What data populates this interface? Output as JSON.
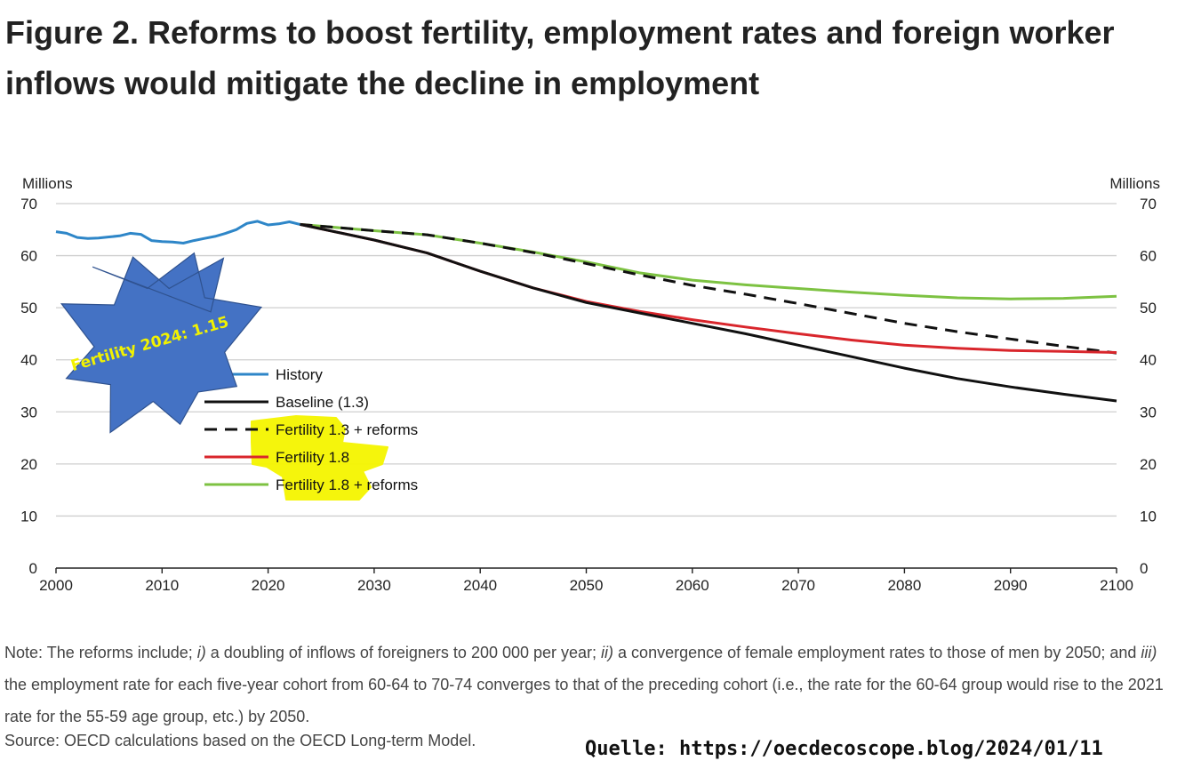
{
  "title": {
    "line1": "Figure 2. Reforms to boost fertility, employment rates and foreign worker",
    "line2": "inflows would mitigate the decline in employment"
  },
  "chart_data": {
    "type": "line",
    "ylabel_left": "Millions",
    "ylabel_right": "Millions",
    "xlim": [
      2000,
      2100
    ],
    "ylim": [
      0,
      70
    ],
    "x_ticks": [
      2000,
      2010,
      2020,
      2030,
      2040,
      2050,
      2060,
      2070,
      2080,
      2090,
      2100
    ],
    "y_ticks": [
      0,
      10,
      20,
      30,
      40,
      50,
      60,
      70
    ],
    "grid": "horizontal",
    "legend_position": "left",
    "series": [
      {
        "name": "History",
        "color": "#2e86c8",
        "dash": "solid",
        "points": [
          [
            2000,
            64.6
          ],
          [
            2001,
            64.3
          ],
          [
            2002,
            63.5
          ],
          [
            2003,
            63.3
          ],
          [
            2004,
            63.4
          ],
          [
            2005,
            63.6
          ],
          [
            2006,
            63.8
          ],
          [
            2007,
            64.3
          ],
          [
            2008,
            64.1
          ],
          [
            2009,
            62.9
          ],
          [
            2010,
            62.7
          ],
          [
            2011,
            62.6
          ],
          [
            2012,
            62.4
          ],
          [
            2013,
            62.9
          ],
          [
            2014,
            63.3
          ],
          [
            2015,
            63.7
          ],
          [
            2016,
            64.3
          ],
          [
            2017,
            65.0
          ],
          [
            2018,
            66.2
          ],
          [
            2019,
            66.6
          ],
          [
            2020,
            65.9
          ],
          [
            2021,
            66.1
          ],
          [
            2022,
            66.5
          ],
          [
            2023,
            66.0
          ]
        ]
      },
      {
        "name": "Baseline (1.3)",
        "color": "#111111",
        "dash": "solid",
        "points": [
          [
            2023,
            66.0
          ],
          [
            2030,
            63.0
          ],
          [
            2035,
            60.5
          ],
          [
            2040,
            57.0
          ],
          [
            2045,
            53.8
          ],
          [
            2050,
            51.0
          ],
          [
            2055,
            49.0
          ],
          [
            2060,
            47.0
          ],
          [
            2065,
            45.0
          ],
          [
            2070,
            42.8
          ],
          [
            2075,
            40.6
          ],
          [
            2080,
            38.4
          ],
          [
            2085,
            36.4
          ],
          [
            2090,
            34.8
          ],
          [
            2095,
            33.4
          ],
          [
            2100,
            32.1
          ]
        ]
      },
      {
        "name": "Fertility 1.3 + reforms",
        "color": "#111111",
        "dash": "dashed",
        "points": [
          [
            2023,
            66.0
          ],
          [
            2030,
            64.8
          ],
          [
            2035,
            64.0
          ],
          [
            2040,
            62.4
          ],
          [
            2045,
            60.6
          ],
          [
            2050,
            58.5
          ],
          [
            2055,
            56.3
          ],
          [
            2060,
            54.3
          ],
          [
            2065,
            52.6
          ],
          [
            2070,
            50.8
          ],
          [
            2075,
            48.9
          ],
          [
            2080,
            47.0
          ],
          [
            2085,
            45.4
          ],
          [
            2090,
            44.0
          ],
          [
            2095,
            42.6
          ],
          [
            2100,
            41.3
          ]
        ]
      },
      {
        "name": "Fertility 1.8",
        "color": "#d9262c",
        "dash": "solid",
        "points": [
          [
            2023,
            66.0
          ],
          [
            2030,
            63.0
          ],
          [
            2035,
            60.5
          ],
          [
            2040,
            57.0
          ],
          [
            2045,
            53.8
          ],
          [
            2050,
            51.2
          ],
          [
            2055,
            49.3
          ],
          [
            2060,
            47.7
          ],
          [
            2065,
            46.3
          ],
          [
            2070,
            45.0
          ],
          [
            2075,
            43.8
          ],
          [
            2080,
            42.8
          ],
          [
            2085,
            42.2
          ],
          [
            2090,
            41.8
          ],
          [
            2095,
            41.6
          ],
          [
            2100,
            41.4
          ]
        ]
      },
      {
        "name": "Fertility 1.8 + reforms",
        "color": "#7dc242",
        "dash": "solid",
        "points": [
          [
            2023,
            66.0
          ],
          [
            2030,
            64.8
          ],
          [
            2035,
            64.0
          ],
          [
            2040,
            62.4
          ],
          [
            2045,
            60.7
          ],
          [
            2050,
            58.8
          ],
          [
            2055,
            56.7
          ],
          [
            2060,
            55.3
          ],
          [
            2065,
            54.4
          ],
          [
            2070,
            53.7
          ],
          [
            2075,
            53.0
          ],
          [
            2080,
            52.4
          ],
          [
            2085,
            51.9
          ],
          [
            2090,
            51.7
          ],
          [
            2095,
            51.8
          ],
          [
            2100,
            52.2
          ]
        ]
      }
    ]
  },
  "legend": {
    "items": [
      {
        "label": "History",
        "color": "#2e86c8",
        "dash": "solid"
      },
      {
        "label": "Baseline (1.3)",
        "color": "#111111",
        "dash": "solid"
      },
      {
        "label": "Fertility 1.3 + reforms",
        "color": "#111111",
        "dash": "dashed"
      },
      {
        "label": "Fertility 1.8",
        "color": "#d9262c",
        "dash": "solid"
      },
      {
        "label": "Fertility 1.8 + reforms",
        "color": "#7dc242",
        "dash": "solid"
      }
    ]
  },
  "starburst": {
    "text": "Fertility 2024: 1.15",
    "fill": "#4472c4",
    "text_color": "#f2f200"
  },
  "highlight_color": "#f5f500",
  "note": {
    "prefix": "Note: The reforms include; ",
    "i": "i)",
    "part1": " a doubling of inflows of foreigners to 200 000 per year; ",
    "ii": "ii)",
    "part2": " a convergence of female employment rates to those of men by 2050; and ",
    "iii": "iii)",
    "part3": " the employment rate for each five-year cohort from 60-64 to 70-74 converges to that of the preceding cohort (i.e., the rate for the 60-64 group would rise to the 2021 rate for the 55-59 age group, etc.) by 2050."
  },
  "source": "Source: OECD calculations based on the OECD Long-term Model.",
  "quelle": "Quelle: https://oecdecoscope.blog/2024/01/11"
}
